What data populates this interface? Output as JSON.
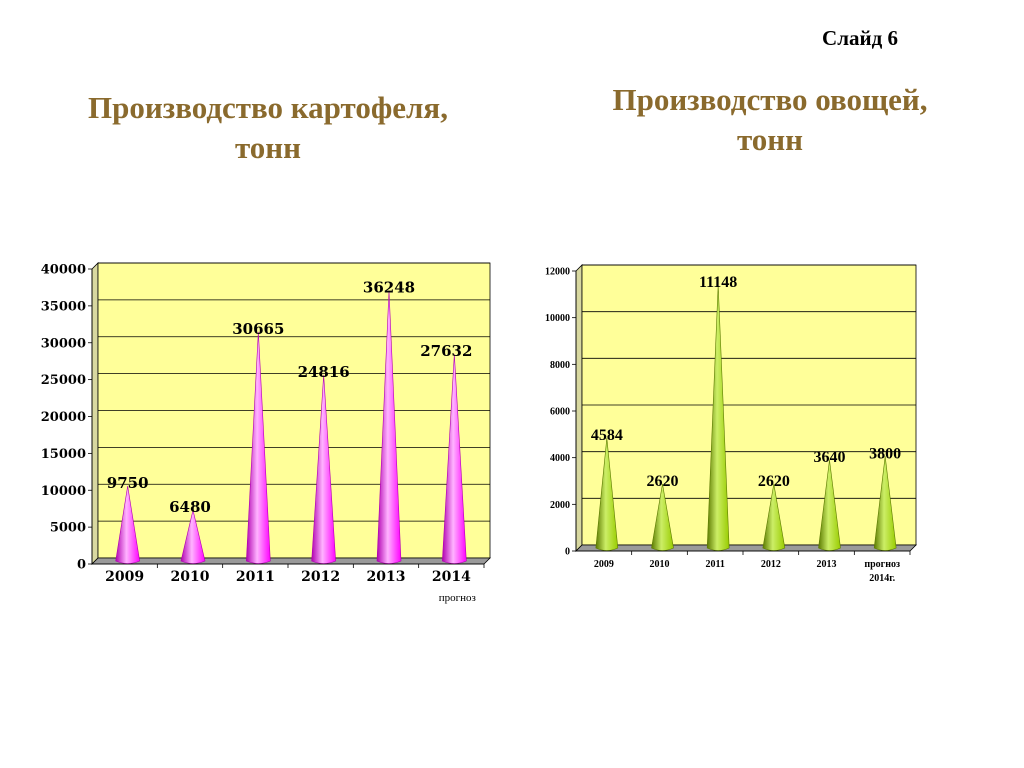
{
  "slide_label": "Слайд 6",
  "chart_data": [
    {
      "type": "bar",
      "title_lines": [
        "Производство картофеля,",
        "тонн"
      ],
      "categories": [
        "2009",
        "2010",
        "2011",
        "2012",
        "2013",
        "2014"
      ],
      "category_note": "прогноз",
      "values": [
        9750,
        6480,
        30665,
        24816,
        36248,
        27632
      ],
      "value_labels": [
        "9750",
        "6480",
        "30665",
        "24816",
        "36248",
        "27632"
      ],
      "ylim": [
        0,
        40000
      ],
      "yticks": [
        0,
        5000,
        10000,
        15000,
        20000,
        25000,
        30000,
        35000,
        40000
      ],
      "ytick_labels": [
        "0",
        "5000",
        "10000",
        "15000",
        "20000",
        "25000",
        "30000",
        "35000",
        "40000"
      ],
      "grid": true,
      "bar_shape": "cone",
      "colors": {
        "plot_bg": "#ffff99",
        "bar": "#ff00ff",
        "bar_dark": "#b000b0",
        "bar_light": "#ffb3ff"
      }
    },
    {
      "type": "bar",
      "title_lines": [
        "Производство овощей,",
        "тонн"
      ],
      "categories": [
        "2009",
        "2010",
        "2011",
        "2012",
        "2013",
        "прогноз 2014г."
      ],
      "category_lines": [
        [
          "2009"
        ],
        [
          "2010"
        ],
        [
          "2011"
        ],
        [
          "2012"
        ],
        [
          "2013"
        ],
        [
          "прогноз",
          "2014г."
        ]
      ],
      "values": [
        4584,
        2620,
        11148,
        2620,
        3640,
        3800
      ],
      "value_labels": [
        "4584",
        "2620",
        "11148",
        "2620",
        "3640",
        "3800"
      ],
      "ylim": [
        0,
        12000
      ],
      "yticks": [
        0,
        2000,
        4000,
        6000,
        8000,
        10000,
        12000
      ],
      "ytick_labels": [
        "0",
        "2000",
        "4000",
        "6000",
        "8000",
        "10000",
        "12000"
      ],
      "grid": true,
      "bar_shape": "cone",
      "colors": {
        "plot_bg": "#ffff99",
        "bar": "#99cc00",
        "bar_dark": "#5c7a00",
        "bar_light": "#ccee66"
      }
    }
  ]
}
